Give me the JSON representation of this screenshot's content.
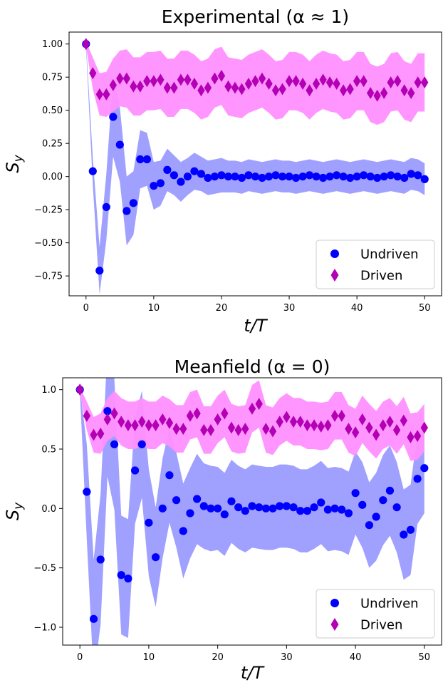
{
  "chart_data": [
    {
      "type": "scatter",
      "title": "Experimental (α ≈ 1)",
      "xlabel": "t/T",
      "ylabel": "S_y",
      "xlim": [
        -2.5,
        52.5
      ],
      "ylim": [
        -0.9,
        1.09
      ],
      "xticks": [
        0,
        10,
        20,
        30,
        40,
        50
      ],
      "yticks": [
        -0.75,
        -0.5,
        -0.25,
        0.0,
        0.25,
        0.5,
        0.75,
        1.0
      ],
      "ytick_labels": [
        "−0.75",
        "−0.50",
        "−0.25",
        "0.00",
        "0.25",
        "0.50",
        "0.75",
        "1.00"
      ],
      "legend_position": "lower-right",
      "series": [
        {
          "name": "Undriven",
          "marker": "circle",
          "color": "#0000ff",
          "band_color": "#9b9bff",
          "x": [
            0,
            1,
            2,
            3,
            4,
            5,
            6,
            7,
            8,
            9,
            10,
            11,
            12,
            13,
            14,
            15,
            16,
            17,
            18,
            19,
            20,
            21,
            22,
            23,
            24,
            25,
            26,
            27,
            28,
            29,
            30,
            31,
            32,
            33,
            34,
            35,
            36,
            37,
            38,
            39,
            40,
            41,
            42,
            43,
            44,
            45,
            46,
            47,
            48,
            49,
            50
          ],
          "y": [
            1.0,
            0.04,
            -0.71,
            -0.23,
            0.45,
            0.24,
            -0.26,
            -0.2,
            0.13,
            0.13,
            -0.07,
            -0.05,
            0.05,
            0.01,
            -0.04,
            0.0,
            0.04,
            0.02,
            -0.01,
            0.0,
            0.01,
            0.0,
            0.0,
            -0.01,
            0.01,
            0.0,
            -0.01,
            0.0,
            0.01,
            0.0,
            0.0,
            -0.01,
            0.0,
            0.01,
            0.0,
            -0.01,
            0.0,
            0.01,
            0.0,
            -0.01,
            0.0,
            0.01,
            0.0,
            -0.01,
            0.0,
            0.01,
            0.0,
            -0.01,
            0.02,
            0.01,
            -0.02
          ],
          "band_half_width": [
            0.02,
            0.1,
            0.18,
            0.25,
            0.3,
            0.28,
            0.26,
            0.24,
            0.22,
            0.2,
            0.18,
            0.17,
            0.16,
            0.15,
            0.15,
            0.14,
            0.14,
            0.13,
            0.13,
            0.13,
            0.13,
            0.12,
            0.12,
            0.12,
            0.12,
            0.12,
            0.12,
            0.12,
            0.12,
            0.12,
            0.12,
            0.12,
            0.12,
            0.12,
            0.12,
            0.12,
            0.12,
            0.12,
            0.12,
            0.12,
            0.12,
            0.12,
            0.12,
            0.12,
            0.12,
            0.12,
            0.12,
            0.12,
            0.12,
            0.12,
            0.12
          ]
        },
        {
          "name": "Driven",
          "marker": "diamond",
          "color": "#b400b4",
          "band_color": "#ff90ff",
          "x": [
            0,
            1,
            2,
            3,
            4,
            5,
            6,
            7,
            8,
            9,
            10,
            11,
            12,
            13,
            14,
            15,
            16,
            17,
            18,
            19,
            20,
            21,
            22,
            23,
            24,
            25,
            26,
            27,
            28,
            29,
            30,
            31,
            32,
            33,
            34,
            35,
            36,
            37,
            38,
            39,
            40,
            41,
            42,
            43,
            44,
            45,
            46,
            47,
            48,
            49,
            50
          ],
          "y": [
            1.0,
            0.78,
            0.62,
            0.62,
            0.69,
            0.74,
            0.74,
            0.68,
            0.68,
            0.72,
            0.72,
            0.73,
            0.67,
            0.67,
            0.73,
            0.73,
            0.7,
            0.65,
            0.67,
            0.74,
            0.76,
            0.68,
            0.67,
            0.66,
            0.7,
            0.72,
            0.74,
            0.7,
            0.65,
            0.66,
            0.72,
            0.72,
            0.7,
            0.65,
            0.7,
            0.73,
            0.71,
            0.7,
            0.65,
            0.66,
            0.72,
            0.72,
            0.63,
            0.61,
            0.63,
            0.71,
            0.72,
            0.65,
            0.63,
            0.71,
            0.71
          ],
          "band_half_width": [
            0.02,
            0.12,
            0.16,
            0.17,
            0.2,
            0.21,
            0.22,
            0.22,
            0.22,
            0.22,
            0.22,
            0.22,
            0.22,
            0.22,
            0.22,
            0.22,
            0.22,
            0.22,
            0.22,
            0.22,
            0.22,
            0.22,
            0.22,
            0.22,
            0.22,
            0.22,
            0.22,
            0.22,
            0.22,
            0.22,
            0.22,
            0.22,
            0.22,
            0.22,
            0.22,
            0.22,
            0.22,
            0.22,
            0.22,
            0.22,
            0.22,
            0.22,
            0.22,
            0.22,
            0.22,
            0.22,
            0.22,
            0.22,
            0.22,
            0.22,
            0.22
          ]
        }
      ]
    },
    {
      "type": "scatter",
      "title": "Meanfield (α = 0)",
      "xlabel": "t/T",
      "ylabel": "S_y",
      "xlim": [
        -2.5,
        52.5
      ],
      "ylim": [
        -1.15,
        1.1
      ],
      "xticks": [
        0,
        10,
        20,
        30,
        40,
        50
      ],
      "yticks": [
        -1.0,
        -0.5,
        0.0,
        0.5,
        1.0
      ],
      "ytick_labels": [
        "−1.0",
        "−0.5",
        "0.0",
        "0.5",
        "1.0"
      ],
      "legend_position": "lower-right",
      "series": [
        {
          "name": "Undriven",
          "marker": "circle",
          "color": "#0000ff",
          "band_color": "#9b9bff",
          "x": [
            0,
            1,
            2,
            3,
            4,
            5,
            6,
            7,
            8,
            9,
            10,
            11,
            12,
            13,
            14,
            15,
            16,
            17,
            18,
            19,
            20,
            21,
            22,
            23,
            24,
            25,
            26,
            27,
            28,
            29,
            30,
            31,
            32,
            33,
            34,
            35,
            36,
            37,
            38,
            39,
            40,
            41,
            42,
            43,
            44,
            45,
            46,
            47,
            48,
            49,
            50
          ],
          "y": [
            1.0,
            0.14,
            -0.93,
            -0.43,
            0.82,
            0.54,
            -0.56,
            -0.59,
            0.32,
            0.54,
            -0.12,
            -0.41,
            0.0,
            0.28,
            0.07,
            -0.19,
            -0.04,
            0.08,
            0.02,
            0.0,
            0.0,
            -0.05,
            0.06,
            0.01,
            -0.02,
            0.02,
            0.01,
            0.0,
            0.0,
            0.02,
            0.02,
            0.01,
            -0.02,
            -0.02,
            0.01,
            0.05,
            -0.01,
            0.0,
            -0.01,
            -0.04,
            0.13,
            0.03,
            -0.14,
            -0.07,
            0.07,
            0.15,
            0.01,
            -0.22,
            -0.18,
            0.25,
            0.34
          ],
          "band_half_width": [
            0.02,
            0.4,
            0.5,
            0.55,
            0.55,
            0.55,
            0.5,
            0.5,
            0.45,
            0.45,
            0.45,
            0.42,
            0.42,
            0.4,
            0.4,
            0.4,
            0.38,
            0.38,
            0.36,
            0.36,
            0.35,
            0.35,
            0.35,
            0.35,
            0.35,
            0.35,
            0.35,
            0.35,
            0.35,
            0.35,
            0.35,
            0.35,
            0.35,
            0.35,
            0.35,
            0.35,
            0.35,
            0.35,
            0.35,
            0.35,
            0.35,
            0.36,
            0.36,
            0.37,
            0.38,
            0.38,
            0.38,
            0.38,
            0.38,
            0.38,
            0.38
          ]
        },
        {
          "name": "Driven",
          "marker": "diamond",
          "color": "#b400b4",
          "band_color": "#ff90ff",
          "x": [
            0,
            1,
            2,
            3,
            4,
            5,
            6,
            7,
            8,
            9,
            10,
            11,
            12,
            13,
            14,
            15,
            16,
            17,
            18,
            19,
            20,
            21,
            22,
            23,
            24,
            25,
            26,
            27,
            28,
            29,
            30,
            31,
            32,
            33,
            34,
            35,
            36,
            37,
            38,
            39,
            40,
            41,
            42,
            43,
            44,
            45,
            46,
            47,
            48,
            49,
            50
          ],
          "y": [
            1.0,
            0.78,
            0.62,
            0.63,
            0.75,
            0.8,
            0.73,
            0.7,
            0.7,
            0.73,
            0.7,
            0.7,
            0.75,
            0.72,
            0.67,
            0.67,
            0.78,
            0.8,
            0.66,
            0.66,
            0.75,
            0.8,
            0.68,
            0.66,
            0.67,
            0.84,
            0.88,
            0.67,
            0.65,
            0.73,
            0.77,
            0.73,
            0.73,
            0.7,
            0.7,
            0.69,
            0.7,
            0.78,
            0.78,
            0.67,
            0.64,
            0.75,
            0.68,
            0.62,
            0.7,
            0.73,
            0.66,
            0.74,
            0.6,
            0.61,
            0.68
          ],
          "band_half_width": [
            0.02,
            0.12,
            0.15,
            0.17,
            0.18,
            0.19,
            0.2,
            0.2,
            0.2,
            0.2,
            0.2,
            0.2,
            0.2,
            0.2,
            0.2,
            0.2,
            0.2,
            0.2,
            0.2,
            0.2,
            0.2,
            0.2,
            0.2,
            0.2,
            0.2,
            0.2,
            0.2,
            0.2,
            0.2,
            0.2,
            0.2,
            0.2,
            0.2,
            0.2,
            0.2,
            0.2,
            0.2,
            0.2,
            0.2,
            0.2,
            0.2,
            0.2,
            0.2,
            0.2,
            0.2,
            0.2,
            0.2,
            0.2,
            0.2,
            0.2,
            0.2
          ]
        }
      ]
    }
  ]
}
